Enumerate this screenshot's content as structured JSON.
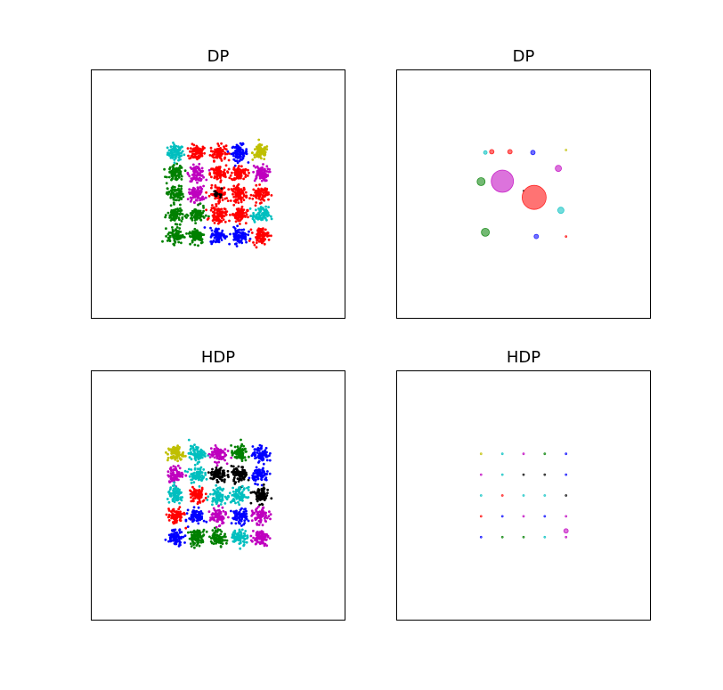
{
  "chart_data": [
    {
      "type": "scatter",
      "title": "DP",
      "xlim": [
        -3,
        3
      ],
      "ylim": [
        -3,
        3
      ],
      "grid": false,
      "spread": 0.17,
      "cluster_centers_x": [
        -1,
        -0.5,
        0,
        0.5,
        1
      ],
      "cluster_centers_y": [
        1,
        0.5,
        0,
        -0.5,
        -1
      ],
      "cluster_colors": [
        [
          "#00bfbf",
          "#ff0000",
          "#ff0000",
          "#0000ff",
          "#bfbf00"
        ],
        [
          "#008000",
          "#bf00bf",
          "#ff0000",
          "#ff0000",
          "#bf00bf"
        ],
        [
          "#008000",
          "#bf00bf",
          "#ff0000",
          "#ff0000",
          "#ff0000"
        ],
        [
          "#008000",
          "#008000",
          "#ff0000",
          "#ff0000",
          "#00bfbf"
        ],
        [
          "#008000",
          "#008000",
          "#0000ff",
          "#0000ff",
          "#ff0000"
        ]
      ],
      "extra_cluster": {
        "x": 0,
        "y": 0,
        "color": "#000000",
        "size": 0.05
      }
    },
    {
      "type": "scatter",
      "title": "DP",
      "xlim": [
        -3,
        3
      ],
      "ylim": [
        -3,
        3
      ],
      "grid": false,
      "points": [
        {
          "x": -0.9,
          "y": 1.0,
          "r": 2,
          "color": "#00bfbf"
        },
        {
          "x": -0.75,
          "y": 1.02,
          "r": 2.5,
          "color": "#ff0000"
        },
        {
          "x": -0.32,
          "y": 1.02,
          "r": 2.5,
          "color": "#ff0000"
        },
        {
          "x": 0.22,
          "y": 1.0,
          "r": 2.5,
          "color": "#0000ff"
        },
        {
          "x": 1.0,
          "y": 1.06,
          "r": 1,
          "color": "#bfbf00"
        },
        {
          "x": 0.82,
          "y": 0.62,
          "r": 3.5,
          "color": "#bf00bf"
        },
        {
          "x": -1.0,
          "y": 0.3,
          "r": 4.5,
          "color": "#008000"
        },
        {
          "x": -0.5,
          "y": 0.31,
          "r": 12.5,
          "color": "#bf00bf"
        },
        {
          "x": 0.0,
          "y": 0.08,
          "r": 0.7,
          "color": "#000000"
        },
        {
          "x": 0.25,
          "y": -0.08,
          "r": 13.5,
          "color": "#ff0000"
        },
        {
          "x": 0.88,
          "y": -0.39,
          "r": 3.5,
          "color": "#00bfbf"
        },
        {
          "x": -0.9,
          "y": -0.92,
          "r": 4.5,
          "color": "#008000"
        },
        {
          "x": 0.3,
          "y": -1.02,
          "r": 2.5,
          "color": "#0000ff"
        },
        {
          "x": 1.0,
          "y": -1.02,
          "r": 1,
          "color": "#ff0000"
        }
      ]
    },
    {
      "type": "scatter",
      "title": "HDP",
      "xlim": [
        -3,
        3
      ],
      "ylim": [
        -3,
        3
      ],
      "grid": false,
      "spread": 0.17,
      "cluster_centers_x": [
        -1,
        -0.5,
        0,
        0.5,
        1
      ],
      "cluster_centers_y": [
        1,
        0.5,
        0,
        -0.5,
        -1
      ],
      "cluster_colors": [
        [
          "#bfbf00",
          "#00bfbf",
          "#bf00bf",
          "#008000",
          "#0000ff"
        ],
        [
          "#bf00bf",
          "#00bfbf",
          "#000000",
          "#000000",
          "#0000ff"
        ],
        [
          "#00bfbf",
          "#ff0000",
          "#00bfbf",
          "#00bfbf",
          "#000000"
        ],
        [
          "#ff0000",
          "#0000ff",
          "#bf00bf",
          "#0000ff",
          "#bf00bf"
        ],
        [
          "#0000ff",
          "#008000",
          "#008000",
          "#00bfbf",
          "#bf00bf"
        ]
      ]
    },
    {
      "type": "scatter",
      "title": "HDP",
      "xlim": [
        -3,
        3
      ],
      "ylim": [
        -3,
        3
      ],
      "grid": false,
      "points": [
        {
          "x": -1,
          "y": 1,
          "r": 1,
          "color": "#bfbf00"
        },
        {
          "x": -0.5,
          "y": 1,
          "r": 1,
          "color": "#00bfbf"
        },
        {
          "x": 0,
          "y": 1,
          "r": 1,
          "color": "#bf00bf"
        },
        {
          "x": 0.5,
          "y": 1,
          "r": 1,
          "color": "#008000"
        },
        {
          "x": 1,
          "y": 1,
          "r": 1,
          "color": "#0000ff"
        },
        {
          "x": -1,
          "y": 0.5,
          "r": 1,
          "color": "#bf00bf"
        },
        {
          "x": -0.5,
          "y": 0.5,
          "r": 1,
          "color": "#00bfbf"
        },
        {
          "x": 0,
          "y": 0.5,
          "r": 1,
          "color": "#000000"
        },
        {
          "x": 0.5,
          "y": 0.5,
          "r": 1,
          "color": "#000000"
        },
        {
          "x": 1,
          "y": 0.5,
          "r": 1,
          "color": "#0000ff"
        },
        {
          "x": -1,
          "y": 0,
          "r": 1,
          "color": "#00bfbf"
        },
        {
          "x": -0.5,
          "y": 0,
          "r": 1,
          "color": "#ff0000"
        },
        {
          "x": 0,
          "y": 0,
          "r": 1,
          "color": "#00bfbf"
        },
        {
          "x": 0.5,
          "y": 0,
          "r": 1,
          "color": "#00bfbf"
        },
        {
          "x": 1,
          "y": 0,
          "r": 1,
          "color": "#000000"
        },
        {
          "x": -1,
          "y": -0.5,
          "r": 1,
          "color": "#ff0000"
        },
        {
          "x": -0.5,
          "y": -0.5,
          "r": 1,
          "color": "#0000ff"
        },
        {
          "x": 0,
          "y": -0.5,
          "r": 1,
          "color": "#bf00bf"
        },
        {
          "x": 0.5,
          "y": -0.5,
          "r": 1,
          "color": "#0000ff"
        },
        {
          "x": 1,
          "y": -0.5,
          "r": 1,
          "color": "#bf00bf"
        },
        {
          "x": -1,
          "y": -1,
          "r": 1,
          "color": "#0000ff"
        },
        {
          "x": -0.5,
          "y": -1,
          "r": 1,
          "color": "#008000"
        },
        {
          "x": 0,
          "y": -1,
          "r": 1,
          "color": "#008000"
        },
        {
          "x": 0.5,
          "y": -1,
          "r": 1,
          "color": "#00bfbf"
        },
        {
          "x": 1,
          "y": -1,
          "r": 1,
          "color": "#bf00bf"
        },
        {
          "x": 1,
          "y": -0.85,
          "r": 2.5,
          "color": "#bf00bf"
        }
      ]
    }
  ]
}
